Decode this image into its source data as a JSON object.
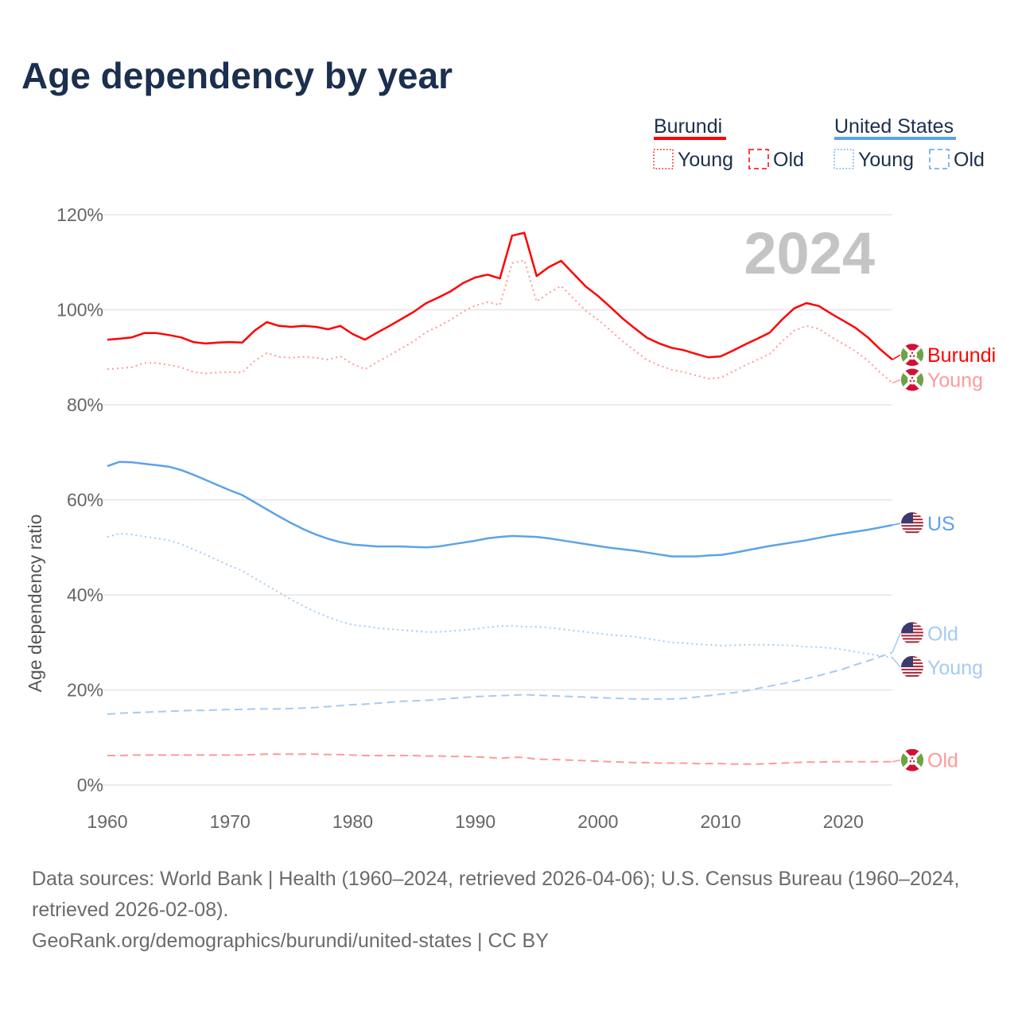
{
  "title": "Age dependency by year",
  "legend": {
    "groups": [
      {
        "name": "Burundi",
        "color": "#ff0000",
        "light": "#ff9999",
        "items": [
          "Young",
          "Old"
        ]
      },
      {
        "name": "United States",
        "color": "#5ba3e8",
        "light": "#a6cbf1",
        "items": [
          "Young",
          "Old"
        ]
      }
    ]
  },
  "footer": {
    "sources": "Data sources: World Bank | Health (1960–2024, retrieved 2026-04-06); U.S. Census Bureau (1960–2024, retrieved 2026-02-08).",
    "attribution": "GeoRank.org/demographics/burundi/united-states | CC BY"
  },
  "chart_data": {
    "type": "line",
    "title": "Age dependency by year",
    "xlabel": "",
    "ylabel": "Age dependency ratio",
    "year_watermark": "2024",
    "xlim": [
      1960,
      2024
    ],
    "ylim": [
      0,
      120
    ],
    "xticks": [
      1960,
      1970,
      1980,
      1990,
      2000,
      2010,
      2020
    ],
    "yticks": [
      0,
      20,
      40,
      60,
      80,
      100,
      120
    ],
    "ytick_labels": [
      "0%",
      "20%",
      "40%",
      "60%",
      "80%",
      "100%",
      "120%"
    ],
    "grid": true,
    "legend_position": "top-right",
    "x_start": 1960,
    "series": [
      {
        "name": "Burundi",
        "label": "Burundi",
        "country": "bi",
        "style": "solid",
        "color": "#ff0000",
        "values": [
          93.7,
          93.9,
          94.2,
          95.1,
          95.1,
          94.7,
          94.2,
          93.2,
          92.9,
          93.1,
          93.2,
          93.1,
          95.6,
          97.4,
          96.6,
          96.4,
          96.6,
          96.4,
          95.9,
          96.6,
          94.9,
          93.7,
          95.2,
          96.6,
          98.1,
          99.6,
          101.4,
          102.6,
          103.9,
          105.6,
          106.8,
          107.4,
          106.6,
          115.6,
          116.2,
          107.1,
          109.0,
          110.3,
          107.6,
          104.9,
          102.9,
          100.6,
          98.2,
          96.1,
          94.1,
          92.9,
          92.0,
          91.5,
          90.7,
          90.0,
          90.2,
          91.4,
          92.7,
          93.9,
          95.2,
          97.9,
          100.3,
          101.4,
          100.8,
          99.2,
          97.7,
          96.2,
          94.2,
          91.7,
          89.5
        ]
      },
      {
        "name": "Burundi Young",
        "label": "Young",
        "country": "bi",
        "style": "dotted",
        "color": "#ff9999",
        "values": [
          87.5,
          87.7,
          87.9,
          88.8,
          88.8,
          88.4,
          87.9,
          86.9,
          86.6,
          86.8,
          86.9,
          86.8,
          89.2,
          90.9,
          90.1,
          89.9,
          90.1,
          89.9,
          89.5,
          90.2,
          88.6,
          87.5,
          89.0,
          90.4,
          91.9,
          93.4,
          95.3,
          96.5,
          97.9,
          99.6,
          100.9,
          101.6,
          101.0,
          109.8,
          110.4,
          101.7,
          103.6,
          105.0,
          102.4,
          99.8,
          97.9,
          95.7,
          93.4,
          91.4,
          89.4,
          88.3,
          87.4,
          86.9,
          86.2,
          85.5,
          85.7,
          87.0,
          88.3,
          89.5,
          90.7,
          93.3,
          95.6,
          96.6,
          96.0,
          94.3,
          92.8,
          91.3,
          89.3,
          86.8,
          84.6
        ]
      },
      {
        "name": "Burundi Old",
        "label": "Old",
        "country": "bi",
        "style": "dashed",
        "color": "#ff9999",
        "values": [
          6.2,
          6.2,
          6.3,
          6.3,
          6.3,
          6.3,
          6.3,
          6.3,
          6.3,
          6.3,
          6.3,
          6.3,
          6.4,
          6.5,
          6.5,
          6.5,
          6.5,
          6.5,
          6.4,
          6.4,
          6.3,
          6.2,
          6.2,
          6.2,
          6.2,
          6.2,
          6.1,
          6.1,
          6.0,
          6.0,
          5.9,
          5.8,
          5.6,
          5.8,
          5.8,
          5.4,
          5.4,
          5.3,
          5.2,
          5.1,
          5.0,
          4.9,
          4.8,
          4.7,
          4.7,
          4.6,
          4.6,
          4.6,
          4.5,
          4.5,
          4.5,
          4.4,
          4.4,
          4.4,
          4.5,
          4.6,
          4.7,
          4.8,
          4.8,
          4.9,
          4.9,
          4.9,
          4.9,
          4.9,
          4.9
        ]
      },
      {
        "name": "United States",
        "label": "US",
        "country": "us",
        "style": "solid",
        "color": "#5ba3e8",
        "values": [
          67.1,
          68.0,
          67.9,
          67.6,
          67.3,
          67.0,
          66.3,
          65.3,
          64.2,
          63.1,
          62.0,
          61.0,
          59.5,
          58.0,
          56.5,
          55.1,
          53.8,
          52.7,
          51.8,
          51.1,
          50.6,
          50.4,
          50.2,
          50.2,
          50.2,
          50.1,
          50.0,
          50.2,
          50.6,
          51.0,
          51.4,
          51.9,
          52.2,
          52.4,
          52.3,
          52.2,
          51.9,
          51.5,
          51.1,
          50.7,
          50.3,
          49.9,
          49.6,
          49.3,
          48.9,
          48.5,
          48.1,
          48.1,
          48.1,
          48.3,
          48.4,
          48.8,
          49.3,
          49.8,
          50.3,
          50.7,
          51.1,
          51.5,
          52.0,
          52.5,
          52.9,
          53.3,
          53.7,
          54.2,
          54.7
        ]
      },
      {
        "name": "United States Old",
        "label": "Old",
        "country": "us",
        "style": "dashed",
        "color": "#a6cbf1",
        "values": [
          14.9,
          15.1,
          15.2,
          15.3,
          15.4,
          15.5,
          15.6,
          15.7,
          15.7,
          15.8,
          15.9,
          15.9,
          16.0,
          16.0,
          16.0,
          16.1,
          16.2,
          16.3,
          16.5,
          16.7,
          16.9,
          17.0,
          17.2,
          17.4,
          17.6,
          17.7,
          17.8,
          18.0,
          18.2,
          18.4,
          18.6,
          18.7,
          18.8,
          18.9,
          19.0,
          18.9,
          18.8,
          18.7,
          18.6,
          18.5,
          18.4,
          18.3,
          18.2,
          18.1,
          18.1,
          18.1,
          18.1,
          18.2,
          18.5,
          18.8,
          19.1,
          19.4,
          19.8,
          20.3,
          20.8,
          21.3,
          21.8,
          22.4,
          23.0,
          23.7,
          24.4,
          25.3,
          26.1,
          27.0,
          27.9
        ]
      },
      {
        "name": "United States Young",
        "label": "Young",
        "country": "us",
        "style": "dotted",
        "color": "#a6cbf1",
        "values": [
          52.2,
          52.9,
          52.7,
          52.3,
          51.9,
          51.5,
          50.7,
          49.6,
          48.5,
          47.3,
          46.1,
          45.1,
          43.5,
          42.0,
          40.5,
          39.0,
          37.6,
          36.4,
          35.3,
          34.4,
          33.7,
          33.4,
          33.0,
          32.8,
          32.6,
          32.4,
          32.2,
          32.2,
          32.4,
          32.6,
          32.8,
          33.2,
          33.4,
          33.5,
          33.3,
          33.3,
          33.1,
          32.8,
          32.5,
          32.2,
          31.9,
          31.6,
          31.4,
          31.2,
          30.8,
          30.4,
          30.0,
          29.9,
          29.6,
          29.5,
          29.3,
          29.4,
          29.5,
          29.5,
          29.5,
          29.4,
          29.3,
          29.1,
          29.0,
          28.8,
          28.5,
          28.0,
          27.6,
          27.2,
          26.8
        ]
      }
    ]
  }
}
